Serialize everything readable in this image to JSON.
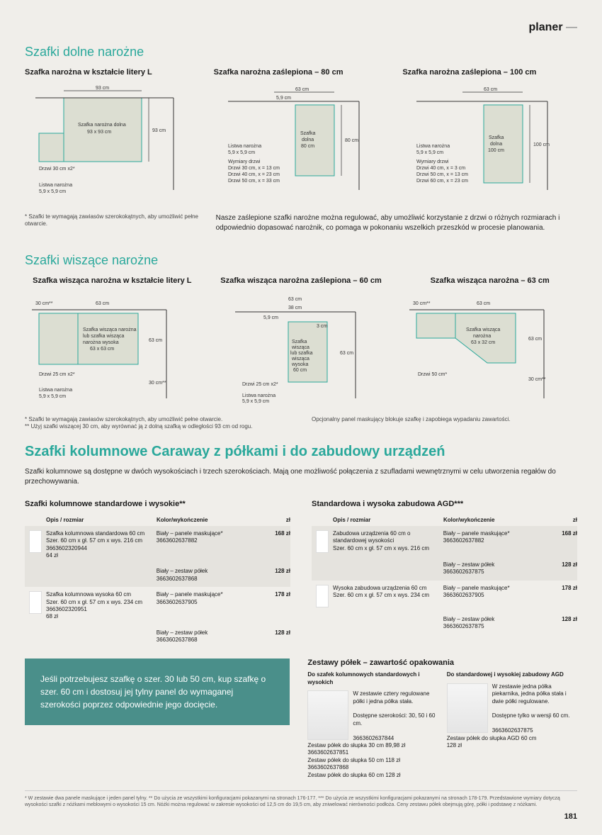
{
  "header": {
    "label": "planer",
    "dash": "—"
  },
  "sec1": {
    "title": "Szafki dolne narożne",
    "items": [
      {
        "title": "Szafka narożna w kształcie litery L"
      },
      {
        "title": "Szafka narożna zaślepiona – 80 cm"
      },
      {
        "title": "Szafka narożna zaślepiona – 100 cm"
      }
    ],
    "note_left": "* Szafki te wymagają zawiasów szerokokątnych, aby umożliwić pełne otwarcie.",
    "note_right": "Nasze zaślepione szafki narożne można regulować, aby umożliwić korzystanie z drzwi o różnych rozmiarach i odpowiednio dopasować narożnik, co pomaga w pokonaniu wszelkich przeszkód w procesie planowania."
  },
  "sec2": {
    "title": "Szafki wiszące narożne",
    "items": [
      {
        "title": "Szafka wisząca narożna w kształcie litery L"
      },
      {
        "title": "Szafka wisząca narożna zaślepiona – 60 cm"
      },
      {
        "title": "Szafka wisząca narożna – 63 cm"
      }
    ],
    "note_left": "* Szafki te wymagają zawiasów szerokokątnych, aby umożliwić pełne otwarcie.\n** Użyj szafki wiszącej 30 cm, aby wyrównać ją z dolną szafką w odległości 93 cm od rogu.",
    "note_right": "Opcjonalny panel maskujący blokuje szafkę i zapobiega wypadaniu zawartości."
  },
  "sec3": {
    "title": "Szafki kolumnowe Caraway z półkami i do zabudowy urządzeń",
    "intro": "Szafki kolumnowe są dostępne w dwóch wysokościach i trzech szerokościach. Mają one możliwość połączenia z szufladami wewnętrznymi w celu utworzenia regałów do przechowywania.",
    "left_table": {
      "title": "Szafki kolumnowe standardowe i wysokie**",
      "headers": [
        "Opis / rozmiar",
        "Kolor/wykończenie",
        "zł"
      ],
      "rows": [
        {
          "desc": "Szafka kolumnowa standardowa 60 cm\nSzer. 60 cm x gł. 57 cm x wys. 216 cm\n3663602320944\n64 zł",
          "sub": [
            {
              "finish": "Biały – panele maskujące*\n3663602637882",
              "price": "168 zł"
            },
            {
              "finish": "Biały – zestaw półek\n3663602637868",
              "price": "128 zł"
            }
          ]
        },
        {
          "desc": "Szafka kolumnowa wysoka 60 cm\nSzer. 60 cm x gł. 57 cm x wys. 234 cm\n3663602320951\n68 zł",
          "sub": [
            {
              "finish": "Biały – panele maskujące*\n3663602637905",
              "price": "178 zł"
            },
            {
              "finish": "Biały – zestaw półek\n3663602637868",
              "price": "128 zł"
            }
          ]
        }
      ]
    },
    "right_table": {
      "title": "Standardowa i wysoka zabudowa AGD***",
      "headers": [
        "Opis / rozmiar",
        "Kolor/wykończenie",
        "zł"
      ],
      "rows": [
        {
          "desc": "Zabudowa urządzenia 60 cm o standardowej wysokości\nSzer. 60 cm x gł. 57 cm x wys. 216 cm",
          "sub": [
            {
              "finish": "Biały – panele maskujące*\n3663602637882",
              "price": "168 zł"
            },
            {
              "finish": "Biały – zestaw półek\n3663602637875",
              "price": "128 zł"
            }
          ]
        },
        {
          "desc": "Wysoka zabudowa urządzenia 60 cm\nSzer. 60 cm x gł. 57 cm x wys. 234 cm",
          "sub": [
            {
              "finish": "Biały – panele maskujące*\n3663602637905",
              "price": "178 zł"
            },
            {
              "finish": "Biały – zestaw półek\n3663602637875",
              "price": "128 zł"
            }
          ]
        }
      ]
    },
    "tip": "Jeśli potrzebujesz szafkę o szer. 30 lub 50 cm, kup szafkę o szer. 60 cm i dostosuj jej tylny panel do wymaganej szerokości poprzez odpowiednie jego docięcie.",
    "shelves": {
      "title": "Zestawy półek – zawartość opakowania",
      "col1_head": "Do szafek kolumnowych standardowych i wysokich",
      "col2_head": "Do standardowej i wysokiej zabudowy AGD",
      "col1_body": "W zestawie cztery regulowane półki i jedna półka stała.\n\nDostępne szerokości: 30, 50 i 60 cm.\n\n3663602637844\nZestaw półek do słupka 30 cm 89,98 zł\n3663602637851\nZestaw półek do słupka 50 cm 118 zł\n3663602637868\nZestaw półek do słupka 60 cm 128 zł",
      "col2_body": "W zestawie jedna półka piekarnika, jedna półka stała i dwie półki regulowane.\n\nDostępne tylko w wersji 60 cm.\n\n3663602637875\nZestaw półek do słupka AGD 60 cm\n128 zł"
    }
  },
  "footer": "* W zestawie dwa panele maskujące i jeden panel tylny. ** Do użycia ze wszystkimi konfiguracjami pokazanymi na stronach 176-177. *** Do użycia ze wszystkimi konfiguracjami pokazanymi na stronach 178-179. Przedstawione wymiary dotyczą wysokości szafki z nóżkami meblowymi o wysokości 15 cm. Nóżki można regulować w zakresie wysokości od 12,5 cm do 19,5 cm, aby zniwelować nierówności podłoża. Ceny zestawu półek obejmują górę, półki i podstawę z nóżkami.",
  "page": "181"
}
